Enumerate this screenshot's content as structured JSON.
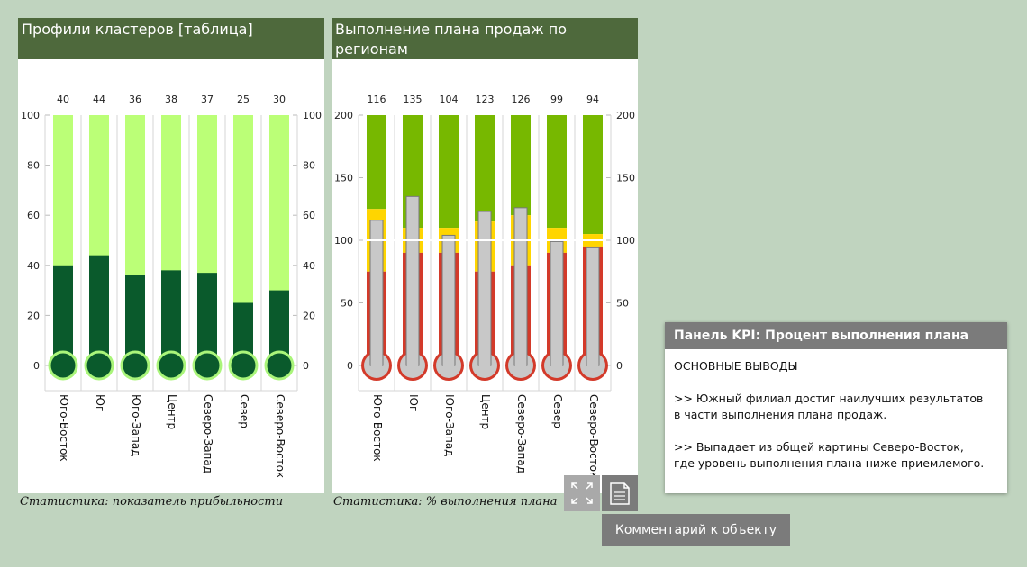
{
  "chart_data": [
    {
      "type": "bar",
      "title": "Профили кластеров [таблица]",
      "caption": "Статистика: показатель прибыльности",
      "categories": [
        "Юго-Восток",
        "Юг",
        "Юго-Запад",
        "Центр",
        "Северо-Запад",
        "Север",
        "Северо-Восток"
      ],
      "values": [
        40,
        44,
        36,
        38,
        37,
        25,
        30
      ],
      "value_labels": [
        "40",
        "44",
        "36",
        "38",
        "37",
        "25",
        "30"
      ],
      "ylim": [
        0,
        100
      ],
      "y_ticks": [
        0,
        20,
        40,
        60,
        80,
        100
      ],
      "y_tick_labels": [
        "0",
        "20",
        "40",
        "60",
        "80",
        "100"
      ],
      "colors": {
        "tube": "#bbff77",
        "fill": "#0a5a2c",
        "bulb_ring": "#aaf57a"
      }
    },
    {
      "type": "bar",
      "title": "Выполнение плана продаж по регионам",
      "caption": "Статистика: % выполнения плана",
      "categories": [
        "Юго-Восток",
        "Юг",
        "Юго-Запад",
        "Центр",
        "Северо-Запад",
        "Север",
        "Северо-Восток"
      ],
      "values": [
        116,
        135,
        104,
        123,
        126,
        99,
        94
      ],
      "value_labels": [
        "116",
        "135",
        "104",
        "123",
        "126",
        "99",
        "94"
      ],
      "ylim": [
        0,
        200
      ],
      "y_ticks": [
        0,
        50,
        100,
        150,
        200
      ],
      "y_tick_labels": [
        "0",
        "50",
        "100",
        "150",
        "200"
      ],
      "target": 100,
      "bands": [
        {
          "red_to": 75,
          "yellow_to": 125
        },
        {
          "red_to": 90,
          "yellow_to": 110
        },
        {
          "red_to": 90,
          "yellow_to": 110
        },
        {
          "red_to": 75,
          "yellow_to": 115
        },
        {
          "red_to": 80,
          "yellow_to": 120
        },
        {
          "red_to": 90,
          "yellow_to": 110
        },
        {
          "red_to": 95,
          "yellow_to": 105
        }
      ],
      "colors": {
        "red": "#d33a2a",
        "yellow": "#ffd500",
        "green": "#77b800",
        "fill": "#c8c8c8",
        "target_line": "#ffffff"
      }
    }
  ],
  "controls": {
    "comment_button": "Комментарий к объекту"
  },
  "kpi_panel": {
    "title": "Панель KPI: Процент выполнения плана",
    "heading": "ОСНОВНЫЕ ВЫВОДЫ",
    "line1": ">> Южный филиал достиг наилучших результатов",
    "line2": "в части выполнения плана продаж.",
    "line3": ">> Выпадает из общей картины Северо-Восток,",
    "line4": "где уровень выполнения плана ниже приемлемого."
  }
}
